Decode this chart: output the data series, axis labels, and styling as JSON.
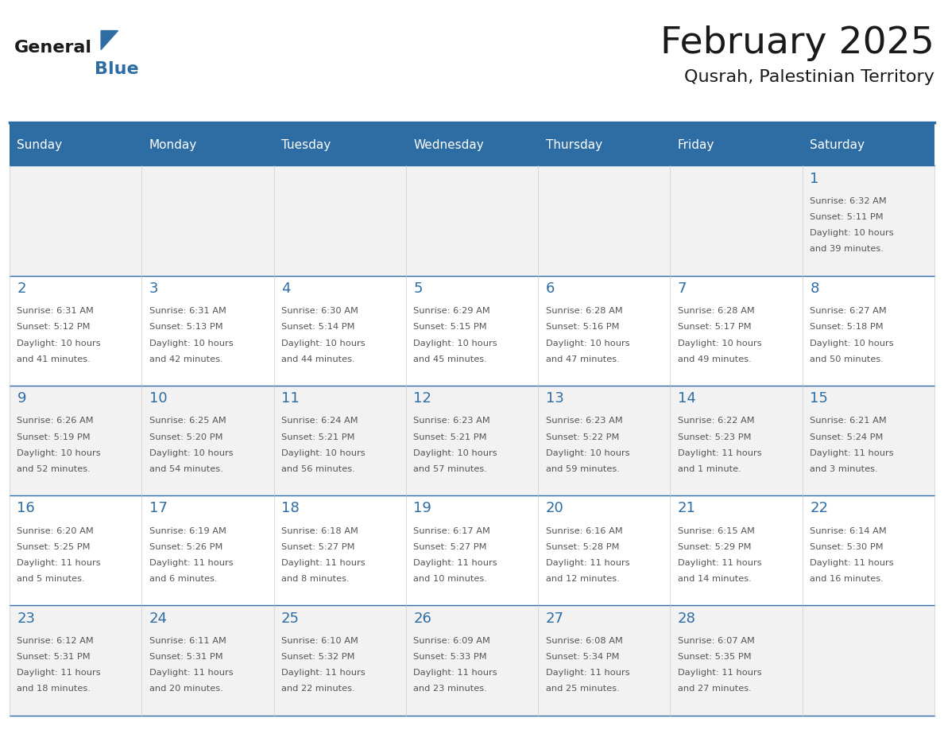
{
  "title": "February 2025",
  "subtitle": "Qusrah, Palestinian Territory",
  "days_of_week": [
    "Sunday",
    "Monday",
    "Tuesday",
    "Wednesday",
    "Thursday",
    "Friday",
    "Saturday"
  ],
  "header_bg": "#2E6DA4",
  "header_text": "#FFFFFF",
  "cell_bg_light": "#F2F2F2",
  "cell_bg_white": "#FFFFFF",
  "day_number_color": "#2E6DA4",
  "text_color": "#555555",
  "line_color": "#2E6DA4",
  "title_color": "#1a1a1a",
  "calendar_data": [
    [
      {
        "day": null,
        "info": ""
      },
      {
        "day": null,
        "info": ""
      },
      {
        "day": null,
        "info": ""
      },
      {
        "day": null,
        "info": ""
      },
      {
        "day": null,
        "info": ""
      },
      {
        "day": null,
        "info": ""
      },
      {
        "day": 1,
        "info": "Sunrise: 6:32 AM\nSunset: 5:11 PM\nDaylight: 10 hours\nand 39 minutes."
      }
    ],
    [
      {
        "day": 2,
        "info": "Sunrise: 6:31 AM\nSunset: 5:12 PM\nDaylight: 10 hours\nand 41 minutes."
      },
      {
        "day": 3,
        "info": "Sunrise: 6:31 AM\nSunset: 5:13 PM\nDaylight: 10 hours\nand 42 minutes."
      },
      {
        "day": 4,
        "info": "Sunrise: 6:30 AM\nSunset: 5:14 PM\nDaylight: 10 hours\nand 44 minutes."
      },
      {
        "day": 5,
        "info": "Sunrise: 6:29 AM\nSunset: 5:15 PM\nDaylight: 10 hours\nand 45 minutes."
      },
      {
        "day": 6,
        "info": "Sunrise: 6:28 AM\nSunset: 5:16 PM\nDaylight: 10 hours\nand 47 minutes."
      },
      {
        "day": 7,
        "info": "Sunrise: 6:28 AM\nSunset: 5:17 PM\nDaylight: 10 hours\nand 49 minutes."
      },
      {
        "day": 8,
        "info": "Sunrise: 6:27 AM\nSunset: 5:18 PM\nDaylight: 10 hours\nand 50 minutes."
      }
    ],
    [
      {
        "day": 9,
        "info": "Sunrise: 6:26 AM\nSunset: 5:19 PM\nDaylight: 10 hours\nand 52 minutes."
      },
      {
        "day": 10,
        "info": "Sunrise: 6:25 AM\nSunset: 5:20 PM\nDaylight: 10 hours\nand 54 minutes."
      },
      {
        "day": 11,
        "info": "Sunrise: 6:24 AM\nSunset: 5:21 PM\nDaylight: 10 hours\nand 56 minutes."
      },
      {
        "day": 12,
        "info": "Sunrise: 6:23 AM\nSunset: 5:21 PM\nDaylight: 10 hours\nand 57 minutes."
      },
      {
        "day": 13,
        "info": "Sunrise: 6:23 AM\nSunset: 5:22 PM\nDaylight: 10 hours\nand 59 minutes."
      },
      {
        "day": 14,
        "info": "Sunrise: 6:22 AM\nSunset: 5:23 PM\nDaylight: 11 hours\nand 1 minute."
      },
      {
        "day": 15,
        "info": "Sunrise: 6:21 AM\nSunset: 5:24 PM\nDaylight: 11 hours\nand 3 minutes."
      }
    ],
    [
      {
        "day": 16,
        "info": "Sunrise: 6:20 AM\nSunset: 5:25 PM\nDaylight: 11 hours\nand 5 minutes."
      },
      {
        "day": 17,
        "info": "Sunrise: 6:19 AM\nSunset: 5:26 PM\nDaylight: 11 hours\nand 6 minutes."
      },
      {
        "day": 18,
        "info": "Sunrise: 6:18 AM\nSunset: 5:27 PM\nDaylight: 11 hours\nand 8 minutes."
      },
      {
        "day": 19,
        "info": "Sunrise: 6:17 AM\nSunset: 5:27 PM\nDaylight: 11 hours\nand 10 minutes."
      },
      {
        "day": 20,
        "info": "Sunrise: 6:16 AM\nSunset: 5:28 PM\nDaylight: 11 hours\nand 12 minutes."
      },
      {
        "day": 21,
        "info": "Sunrise: 6:15 AM\nSunset: 5:29 PM\nDaylight: 11 hours\nand 14 minutes."
      },
      {
        "day": 22,
        "info": "Sunrise: 6:14 AM\nSunset: 5:30 PM\nDaylight: 11 hours\nand 16 minutes."
      }
    ],
    [
      {
        "day": 23,
        "info": "Sunrise: 6:12 AM\nSunset: 5:31 PM\nDaylight: 11 hours\nand 18 minutes."
      },
      {
        "day": 24,
        "info": "Sunrise: 6:11 AM\nSunset: 5:31 PM\nDaylight: 11 hours\nand 20 minutes."
      },
      {
        "day": 25,
        "info": "Sunrise: 6:10 AM\nSunset: 5:32 PM\nDaylight: 11 hours\nand 22 minutes."
      },
      {
        "day": 26,
        "info": "Sunrise: 6:09 AM\nSunset: 5:33 PM\nDaylight: 11 hours\nand 23 minutes."
      },
      {
        "day": 27,
        "info": "Sunrise: 6:08 AM\nSunset: 5:34 PM\nDaylight: 11 hours\nand 25 minutes."
      },
      {
        "day": 28,
        "info": "Sunrise: 6:07 AM\nSunset: 5:35 PM\nDaylight: 11 hours\nand 27 minutes."
      },
      {
        "day": null,
        "info": ""
      }
    ]
  ]
}
